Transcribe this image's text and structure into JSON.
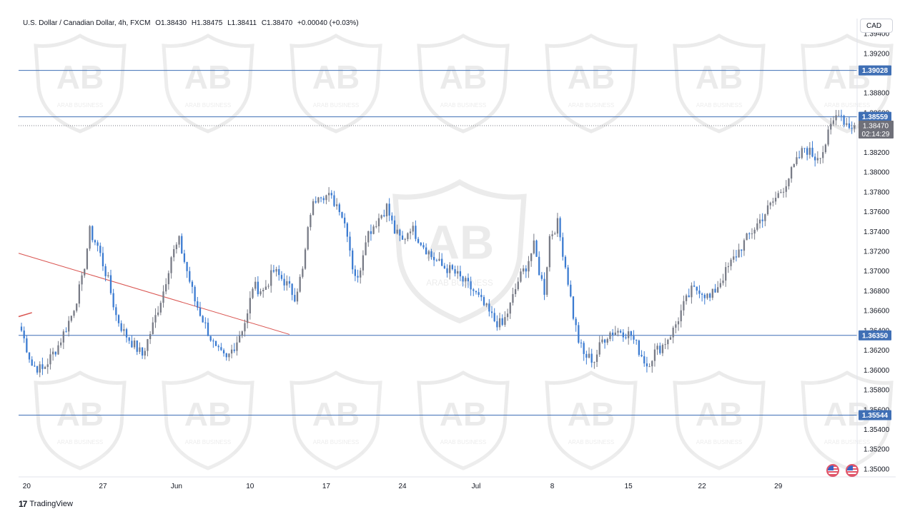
{
  "header": {
    "symbol": "U.S. Dollar / Canadian Dollar, 4h, FXCM",
    "open": "O1.38430",
    "high": "H1.38475",
    "low": "L1.38411",
    "close": "C1.38470",
    "change": "+0.00040 (+0.03%)"
  },
  "currency_button": "CAD",
  "branding": {
    "tradingview": "TradingView",
    "watermark": "ARAB BUSINESS"
  },
  "colors": {
    "up": "#787b86",
    "down": "#3b7bd1",
    "level": "#3f6fb5",
    "trend": "#d9534f",
    "price_tag": "#6f7079"
  },
  "chart_data": {
    "type": "candlestick",
    "title": "U.S. Dollar / Canadian Dollar, 4h, FXCM",
    "ylim": [
      1.3492,
      1.3948
    ],
    "y_ticks": [
      "1.39400",
      "1.39200",
      "1.38800",
      "1.38600",
      "1.38200",
      "1.38000",
      "1.37800",
      "1.37600",
      "1.37400",
      "1.37200",
      "1.37000",
      "1.36800",
      "1.36600",
      "1.36400",
      "1.36200",
      "1.36000",
      "1.35800",
      "1.35600",
      "1.35400",
      "1.35200",
      "1.35000"
    ],
    "x_ticks": [
      "20",
      "27",
      "Jun",
      "10",
      "17",
      "24",
      "Jul",
      "8",
      "15",
      "22",
      "29"
    ],
    "horizontal_levels": [
      "1.39028",
      "1.38559",
      "1.36350",
      "1.35544"
    ],
    "current_price": "1.38470",
    "countdown": "02:14:29",
    "path": [
      [
        0,
        1.364
      ],
      [
        4,
        1.3605
      ],
      [
        8,
        1.36
      ],
      [
        14,
        1.3625
      ],
      [
        19,
        1.3655
      ],
      [
        23,
        1.369
      ],
      [
        26,
        1.374
      ],
      [
        29,
        1.3725
      ],
      [
        33,
        1.369
      ],
      [
        36,
        1.3655
      ],
      [
        39,
        1.3638
      ],
      [
        42,
        1.3628
      ],
      [
        46,
        1.3615
      ],
      [
        50,
        1.3645
      ],
      [
        54,
        1.368
      ],
      [
        57,
        1.3715
      ],
      [
        60,
        1.373
      ],
      [
        63,
        1.37
      ],
      [
        66,
        1.367
      ],
      [
        70,
        1.3645
      ],
      [
        74,
        1.362
      ],
      [
        78,
        1.361
      ],
      [
        82,
        1.363
      ],
      [
        86,
        1.3655
      ],
      [
        88,
        1.3685
      ],
      [
        92,
        1.368
      ],
      [
        96,
        1.37
      ],
      [
        100,
        1.369
      ],
      [
        104,
        1.3675
      ],
      [
        107,
        1.37
      ],
      [
        110,
        1.376
      ],
      [
        113,
        1.378
      ],
      [
        117,
        1.3775
      ],
      [
        121,
        1.3765
      ],
      [
        124,
        1.374
      ],
      [
        126,
        1.3705
      ],
      [
        128,
        1.369
      ],
      [
        131,
        1.3735
      ],
      [
        135,
        1.375
      ],
      [
        139,
        1.3765
      ],
      [
        142,
        1.374
      ],
      [
        145,
        1.373
      ],
      [
        148,
        1.3745
      ],
      [
        152,
        1.373
      ],
      [
        156,
        1.3715
      ],
      [
        160,
        1.3705
      ],
      [
        164,
        1.37
      ],
      [
        168,
        1.369
      ],
      [
        172,
        1.368
      ],
      [
        176,
        1.3665
      ],
      [
        180,
        1.365
      ],
      [
        183,
        1.3645
      ],
      [
        186,
        1.3665
      ],
      [
        189,
        1.369
      ],
      [
        192,
        1.3705
      ],
      [
        195,
        1.3725
      ],
      [
        197,
        1.37
      ],
      [
        199,
        1.368
      ],
      [
        201,
        1.3735
      ],
      [
        204,
        1.3748
      ],
      [
        206,
        1.372
      ],
      [
        208,
        1.369
      ],
      [
        210,
        1.3655
      ],
      [
        212,
        1.363
      ],
      [
        214,
        1.3615
      ],
      [
        218,
        1.361
      ],
      [
        221,
        1.363
      ],
      [
        224,
        1.3638
      ],
      [
        228,
        1.364
      ],
      [
        232,
        1.3635
      ],
      [
        235,
        1.362
      ],
      [
        238,
        1.3605
      ],
      [
        241,
        1.3618
      ],
      [
        244,
        1.3625
      ],
      [
        248,
        1.364
      ],
      [
        252,
        1.3665
      ],
      [
        255,
        1.368
      ],
      [
        258,
        1.3682
      ],
      [
        262,
        1.3672
      ],
      [
        266,
        1.369
      ],
      [
        270,
        1.3708
      ],
      [
        274,
        1.3725
      ],
      [
        278,
        1.374
      ],
      [
        282,
        1.3755
      ],
      [
        286,
        1.377
      ],
      [
        290,
        1.3785
      ],
      [
        294,
        1.3805
      ],
      [
        298,
        1.3825
      ],
      [
        302,
        1.3815
      ],
      [
        305,
        1.3822
      ],
      [
        308,
        1.3845
      ],
      [
        311,
        1.3863
      ],
      [
        313,
        1.3852
      ],
      [
        315,
        1.3847
      ]
    ],
    "candles": []
  }
}
